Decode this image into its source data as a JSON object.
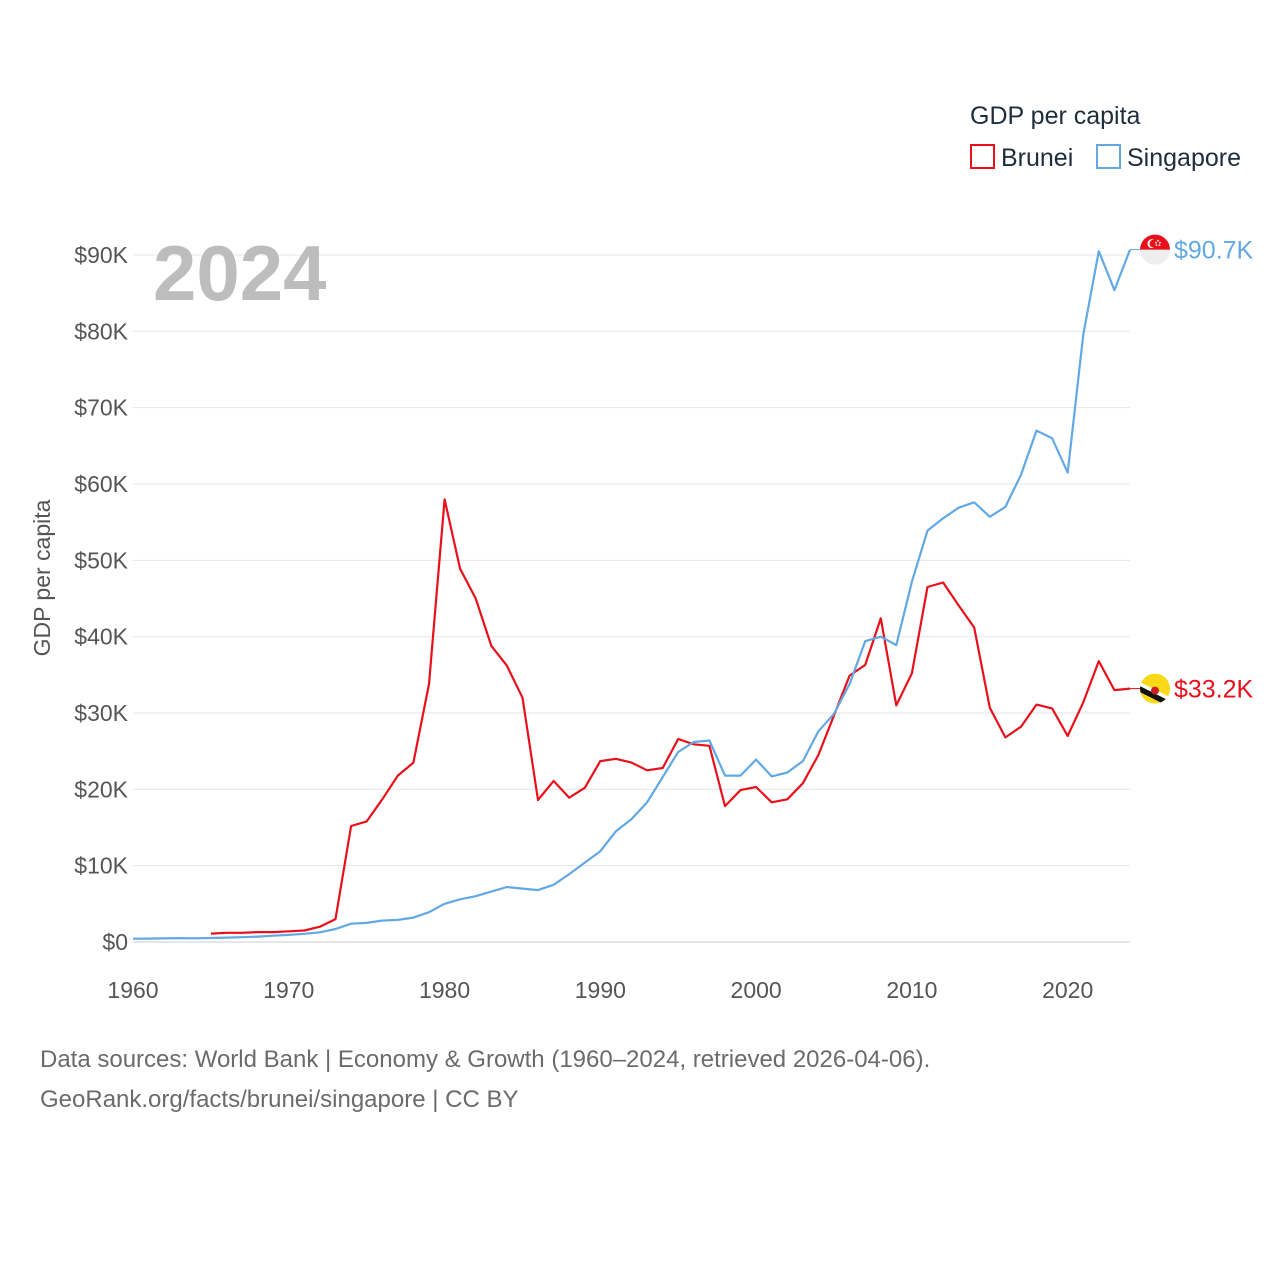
{
  "chart_data": {
    "type": "line",
    "legend_title": "GDP per capita",
    "ylabel": "GDP per capita",
    "year_label": "2024",
    "xlim": [
      1960,
      2024
    ],
    "ylim": [
      0,
      90000
    ],
    "x_ticks": [
      1960,
      1970,
      1980,
      1990,
      2000,
      2010,
      2020
    ],
    "x_tick_labels": [
      "1960",
      "1970",
      "1980",
      "1990",
      "2000",
      "2010",
      "2020"
    ],
    "y_ticks": [
      0,
      10000,
      20000,
      30000,
      40000,
      50000,
      60000,
      70000,
      80000,
      90000
    ],
    "y_tick_labels": [
      "$0",
      "$10K",
      "$20K",
      "$30K",
      "$40K",
      "$50K",
      "$60K",
      "$70K",
      "$80K",
      "$90K"
    ],
    "series": [
      {
        "name": "Brunei",
        "color": "#e8101a",
        "end_label": "$33.2K",
        "flag": "brunei-flag-icon",
        "start_year": 1965,
        "values": [
          1100,
          1200,
          1200,
          1300,
          1300,
          1400,
          1500,
          2000,
          3000,
          15200,
          15800,
          18700,
          21800,
          23500,
          33800,
          58000,
          48900,
          45000,
          38800,
          36200,
          32000,
          18600,
          21100,
          18900,
          20200,
          23700,
          24000,
          23500,
          22500,
          22800,
          26600,
          25900,
          25700,
          17800,
          19900,
          20300,
          18300,
          18700,
          20800,
          24500,
          29700,
          34900,
          36300,
          42400,
          31000,
          35200,
          46500,
          47100,
          44100,
          41200,
          30700,
          26800,
          28200,
          31100,
          30600,
          27000,
          31400,
          36800,
          33000,
          33200
        ]
      },
      {
        "name": "Singapore",
        "color": "#62a8e5",
        "end_label": "$90.7K",
        "flag": "singapore-flag-icon",
        "start_year": 1960,
        "values": [
          430,
          450,
          470,
          510,
          490,
          520,
          570,
          630,
          710,
          830,
          930,
          1080,
          1270,
          1700,
          2400,
          2500,
          2800,
          2900,
          3200,
          3900,
          5000,
          5600,
          6000,
          6600,
          7200,
          7000,
          6800,
          7500,
          8900,
          10400,
          11900,
          14500,
          16100,
          18300,
          21600,
          24900,
          26200,
          26400,
          21800,
          21800,
          23900,
          21700,
          22200,
          23700,
          27600,
          29900,
          33800,
          39400,
          40000,
          38900,
          47200,
          53900,
          55500,
          56900,
          57600,
          55700,
          57000,
          61200,
          67000,
          66000,
          61500,
          79600,
          90500,
          85400,
          90700
        ]
      }
    ]
  },
  "source_line1": "Data sources: World Bank | Economy & Growth (1960–2024, retrieved 2026-04-06).",
  "source_line2": "GeoRank.org/facts/brunei/singapore | CC BY"
}
